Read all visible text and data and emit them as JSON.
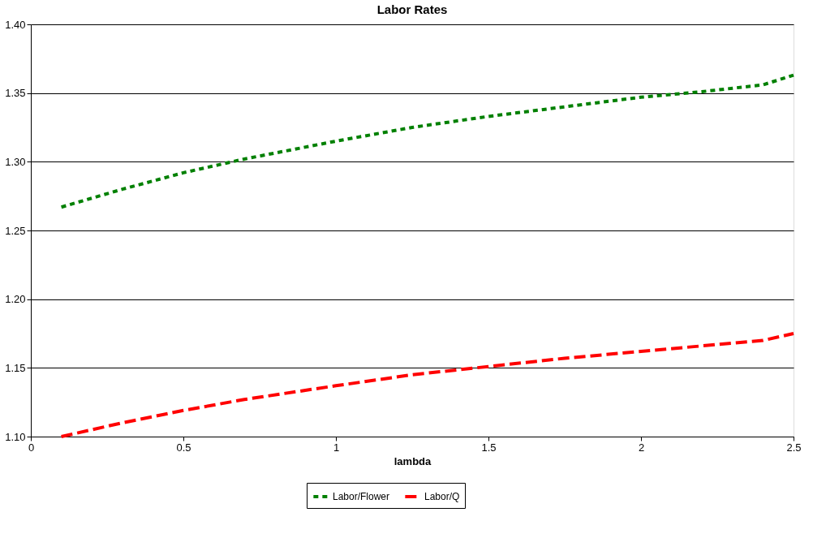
{
  "chart_data": {
    "type": "line",
    "title": "Labor Rates",
    "xlabel": "lambda",
    "x": [
      0.1,
      0.3,
      0.5,
      0.7,
      1.0,
      1.25,
      1.5,
      1.75,
      2.0,
      2.2,
      2.4,
      2.5
    ],
    "series": [
      {
        "name": "Labor/Flower",
        "color": "#008000",
        "line_style": "dotted",
        "values": [
          1.267,
          1.28,
          1.292,
          1.302,
          1.315,
          1.325,
          1.333,
          1.34,
          1.347,
          1.351,
          1.356,
          1.363
        ]
      },
      {
        "name": "Labor/Q",
        "color": "#ff0000",
        "line_style": "dashed",
        "values": [
          1.1,
          1.11,
          1.119,
          1.127,
          1.137,
          1.145,
          1.151,
          1.157,
          1.162,
          1.166,
          1.17,
          1.175
        ]
      }
    ],
    "xlim": [
      0,
      2.5
    ],
    "xticks": [
      0,
      0.5,
      1,
      1.5,
      2,
      2.5
    ],
    "ylim": [
      1.1,
      1.4
    ],
    "yticks": [
      {
        "value": 1.1,
        "label": "1.10"
      },
      {
        "value": 1.15,
        "label": "1.15"
      },
      {
        "value": 1.2,
        "label": "1.20"
      },
      {
        "value": 1.25,
        "label": "1.25"
      },
      {
        "value": 1.3,
        "label": "1.30"
      },
      {
        "value": 1.35,
        "label": "1.35"
      },
      {
        "value": 1.4,
        "label": "1.40"
      }
    ],
    "grid": "y",
    "legend": "bottom",
    "marker": "none"
  }
}
